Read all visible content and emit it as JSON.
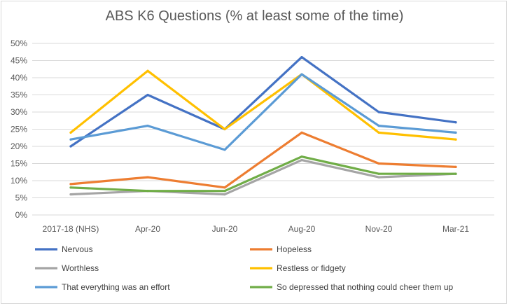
{
  "chart_data": {
    "type": "line",
    "title": "ABS K6 Questions (% at least some of the time)",
    "xlabel": "",
    "ylabel": "",
    "categories": [
      "2017-18 (NHS)",
      "Apr-20",
      "Jun-20",
      "Aug-20",
      "Nov-20",
      "Mar-21"
    ],
    "ylim": [
      0,
      50
    ],
    "yticks": [
      "0%",
      "5%",
      "10%",
      "15%",
      "20%",
      "25%",
      "30%",
      "35%",
      "40%",
      "45%",
      "50%"
    ],
    "grid": true,
    "legend_position": "bottom",
    "series": [
      {
        "name": "Nervous",
        "color": "#4472c4",
        "values": [
          20,
          35,
          25,
          46,
          30,
          27
        ]
      },
      {
        "name": "Hopeless",
        "color": "#ed7d31",
        "values": [
          9,
          11,
          8,
          24,
          15,
          14
        ]
      },
      {
        "name": "Worthless",
        "color": "#a5a5a5",
        "values": [
          6,
          7,
          6,
          16,
          11,
          12
        ]
      },
      {
        "name": "Restless or fidgety",
        "color": "#ffc000",
        "values": [
          24,
          42,
          25,
          41,
          24,
          22
        ]
      },
      {
        "name": "That everything was an effort",
        "color": "#5b9bd5",
        "values": [
          22,
          26,
          19,
          41,
          26,
          24
        ]
      },
      {
        "name": "So depressed that nothing could cheer them up",
        "color": "#70ad47",
        "values": [
          8,
          7,
          7,
          17,
          12,
          12
        ]
      }
    ]
  }
}
